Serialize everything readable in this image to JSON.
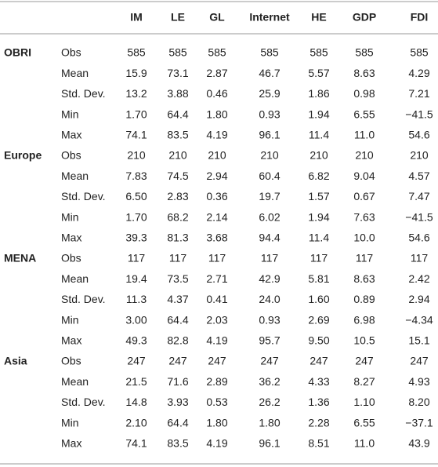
{
  "table": {
    "columns": [
      "IM",
      "LE",
      "GL",
      "Internet",
      "HE",
      "GDP",
      "FDI"
    ],
    "groups": [
      {
        "name": "OBRI",
        "rows": [
          {
            "stat": "Obs",
            "values": [
              "585",
              "585",
              "585",
              "585",
              "585",
              "585",
              "585"
            ]
          },
          {
            "stat": "Mean",
            "values": [
              "15.9",
              "73.1",
              "2.87",
              "46.7",
              "5.57",
              "8.63",
              "4.29"
            ]
          },
          {
            "stat": "Std. Dev.",
            "values": [
              "13.2",
              "3.88",
              "0.46",
              "25.9",
              "1.86",
              "0.98",
              "7.21"
            ]
          },
          {
            "stat": "Min",
            "values": [
              "1.70",
              "64.4",
              "1.80",
              "0.93",
              "1.94",
              "6.55",
              "−41.5"
            ]
          },
          {
            "stat": "Max",
            "values": [
              "74.1",
              "83.5",
              "4.19",
              "96.1",
              "11.4",
              "11.0",
              "54.6"
            ]
          }
        ]
      },
      {
        "name": "Europe",
        "rows": [
          {
            "stat": "Obs",
            "values": [
              "210",
              "210",
              "210",
              "210",
              "210",
              "210",
              "210"
            ]
          },
          {
            "stat": "Mean",
            "values": [
              "7.83",
              "74.5",
              "2.94",
              "60.4",
              "6.82",
              "9.04",
              "4.57"
            ]
          },
          {
            "stat": "Std. Dev.",
            "values": [
              "6.50",
              "2.83",
              "0.36",
              "19.7",
              "1.57",
              "0.67",
              "7.47"
            ]
          },
          {
            "stat": "Min",
            "values": [
              "1.70",
              "68.2",
              "2.14",
              "6.02",
              "1.94",
              "7.63",
              "−41.5"
            ]
          },
          {
            "stat": "Max",
            "values": [
              "39.3",
              "81.3",
              "3.68",
              "94.4",
              "11.4",
              "10.0",
              "54.6"
            ]
          }
        ]
      },
      {
        "name": "MENA",
        "rows": [
          {
            "stat": "Obs",
            "values": [
              "117",
              "117",
              "117",
              "117",
              "117",
              "117",
              "117"
            ]
          },
          {
            "stat": "Mean",
            "values": [
              "19.4",
              "73.5",
              "2.71",
              "42.9",
              "5.81",
              "8.63",
              "2.42"
            ]
          },
          {
            "stat": "Std. Dev.",
            "values": [
              "11.3",
              "4.37",
              "0.41",
              "24.0",
              "1.60",
              "0.89",
              "2.94"
            ]
          },
          {
            "stat": "Min",
            "values": [
              "3.00",
              "64.4",
              "2.03",
              "0.93",
              "2.69",
              "6.98",
              "−4.34"
            ]
          },
          {
            "stat": "Max",
            "values": [
              "49.3",
              "82.8",
              "4.19",
              "95.7",
              "9.50",
              "10.5",
              "15.1"
            ]
          }
        ]
      },
      {
        "name": "Asia",
        "rows": [
          {
            "stat": "Obs",
            "values": [
              "247",
              "247",
              "247",
              "247",
              "247",
              "247",
              "247"
            ]
          },
          {
            "stat": "Mean",
            "values": [
              "21.5",
              "71.6",
              "2.89",
              "36.2",
              "4.33",
              "8.27",
              "4.93"
            ]
          },
          {
            "stat": "Std. Dev.",
            "values": [
              "14.8",
              "3.93",
              "0.53",
              "26.2",
              "1.36",
              "1.10",
              "8.20"
            ]
          },
          {
            "stat": "Min",
            "values": [
              "2.10",
              "64.4",
              "1.80",
              "1.80",
              "2.28",
              "6.55",
              "−37.1"
            ]
          },
          {
            "stat": "Max",
            "values": [
              "74.1",
              "83.5",
              "4.19",
              "96.1",
              "8.51",
              "11.0",
              "43.9"
            ]
          }
        ]
      }
    ]
  }
}
